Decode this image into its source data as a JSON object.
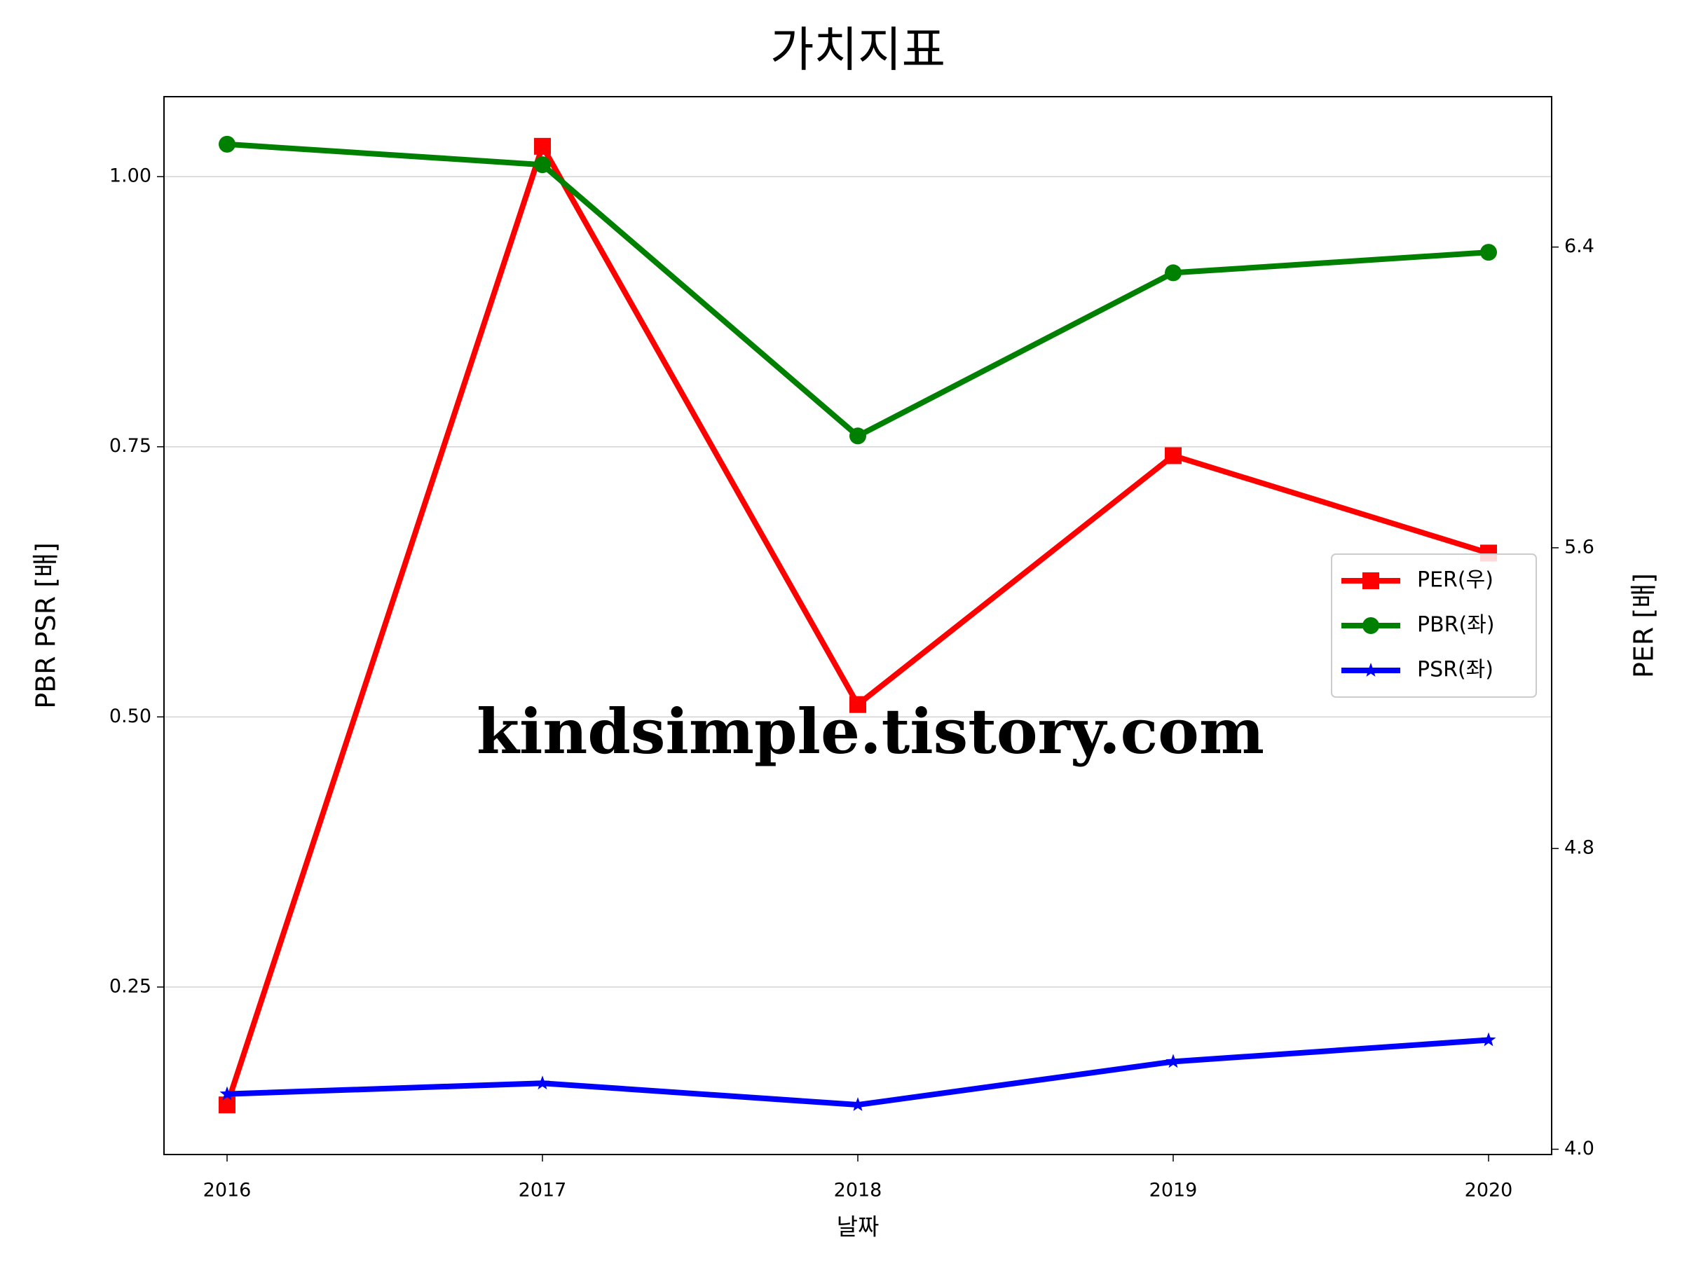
{
  "chart_data": {
    "type": "line",
    "title": "가치지표",
    "x_label": "날짜",
    "y_label": "PBR PSR [배]",
    "y2_label": "PER [배]",
    "y_label_color": "#008000",
    "y2_label_color": "#ff0000",
    "annotation": "kindsimple.tistory.com",
    "annotation_color": "#e4a6ea",
    "x": [
      2016,
      2017,
      2018,
      2019,
      2020
    ],
    "xlim": [
      2015.8,
      2020.2
    ],
    "xticks": [
      2016,
      2017,
      2018,
      2019,
      2020
    ],
    "ylim": [
      0.095,
      1.074
    ],
    "yticks": [
      {
        "value": 0.25,
        "label": "0.25"
      },
      {
        "value": 0.5,
        "label": "0.50"
      },
      {
        "value": 0.75,
        "label": "0.75"
      },
      {
        "value": 1.0,
        "label": "1.00"
      }
    ],
    "y2lim": [
      3.986,
      6.8
    ],
    "y2ticks": [
      {
        "value": 4.0,
        "label": "4.0"
      },
      4.8,
      5.6,
      6.4
    ],
    "grid": true,
    "legend": "center right",
    "series": [
      {
        "name": "PER(우)",
        "color": "#ff0000",
        "marker": "square",
        "axis": "y2",
        "values": [
          4.118,
          6.668,
          5.183,
          5.845,
          5.586
        ]
      },
      {
        "name": "PBR(좌)",
        "color": "#008000",
        "marker": "circle",
        "values": [
          1.03,
          1.011,
          0.76,
          0.911,
          0.93
        ]
      },
      {
        "name": "PSR(좌)",
        "color": "#0000ff",
        "marker": "star",
        "values": [
          0.151,
          0.161,
          0.141,
          0.181,
          0.201
        ]
      }
    ]
  }
}
